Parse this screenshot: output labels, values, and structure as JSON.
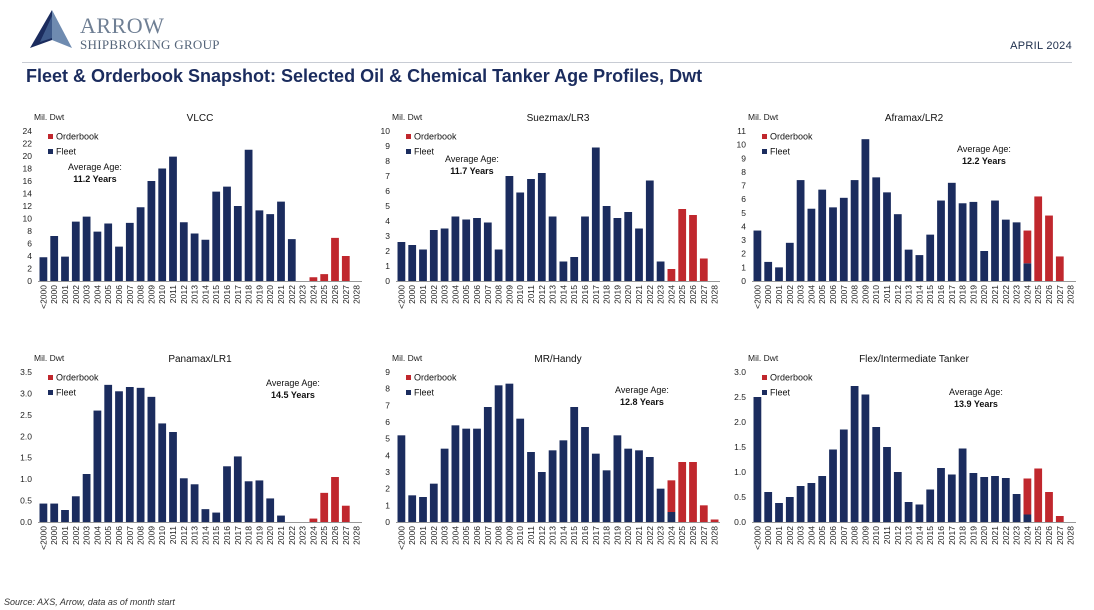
{
  "header": {
    "brand_line1": "ARROW",
    "brand_line2": "SHIPBROKING GROUP",
    "date": "APRIL 2024",
    "title": "Fleet & Orderbook Snapshot: Selected Oil & Chemical Tanker Age Profiles, Dwt"
  },
  "footer": {
    "source": "Source: AXS, Arrow, data as of month start"
  },
  "colors": {
    "fleet": "#1b2c5e",
    "orderbook": "#c0272d",
    "text": "#1b2c4a"
  },
  "chart_data": [
    {
      "type": "bar",
      "stacked": true,
      "title": "VLCC",
      "ylabel": "Mil. Dwt",
      "ylim": [
        0,
        24
      ],
      "yticks": [
        0,
        2,
        4,
        6,
        8,
        10,
        12,
        14,
        16,
        18,
        20,
        22,
        24
      ],
      "categories": [
        "<2000",
        "2000",
        "2001",
        "2002",
        "2003",
        "2004",
        "2005",
        "2006",
        "2007",
        "2008",
        "2009",
        "2010",
        "2011",
        "2012",
        "2013",
        "2014",
        "2015",
        "2016",
        "2017",
        "2018",
        "2019",
        "2020",
        "2021",
        "2022",
        "2023",
        "2024",
        "2025",
        "2026",
        "2027",
        "2028"
      ],
      "series": [
        {
          "name": "Orderbook",
          "color": "#c0272d",
          "values": [
            0,
            0,
            0,
            0,
            0,
            0,
            0,
            0,
            0,
            0,
            0,
            0,
            0,
            0,
            0,
            0,
            0,
            0,
            0,
            0,
            0,
            0,
            0,
            0,
            0,
            0.6,
            1.1,
            6.9,
            4.0,
            0
          ]
        },
        {
          "name": "Fleet",
          "color": "#1b2c5e",
          "values": [
            3.8,
            7.2,
            3.9,
            9.5,
            10.3,
            7.9,
            9.2,
            5.5,
            9.3,
            11.8,
            16.0,
            18.0,
            19.9,
            9.4,
            7.6,
            6.6,
            14.3,
            15.1,
            12.0,
            21.0,
            11.3,
            10.7,
            12.7,
            6.7,
            0,
            0,
            0,
            0,
            0,
            0
          ]
        }
      ],
      "legend": "top-left",
      "annotation": {
        "line1": "Average Age:",
        "line2": "11.2 Years"
      }
    },
    {
      "type": "bar",
      "stacked": true,
      "title": "Suezmax/LR3",
      "ylabel": "Mil. Dwt",
      "ylim": [
        0,
        10
      ],
      "yticks": [
        0,
        1,
        2,
        3,
        4,
        5,
        6,
        7,
        8,
        9,
        10
      ],
      "categories": [
        "<2000",
        "2000",
        "2001",
        "2002",
        "2003",
        "2004",
        "2005",
        "2006",
        "2007",
        "2008",
        "2009",
        "2010",
        "2011",
        "2012",
        "2013",
        "2014",
        "2015",
        "2016",
        "2017",
        "2018",
        "2019",
        "2020",
        "2021",
        "2022",
        "2023",
        "2024",
        "2025",
        "2026",
        "2027",
        "2028"
      ],
      "series": [
        {
          "name": "Orderbook",
          "color": "#c0272d",
          "values": [
            0,
            0,
            0,
            0,
            0,
            0,
            0,
            0,
            0,
            0,
            0,
            0,
            0,
            0,
            0,
            0,
            0,
            0,
            0,
            0,
            0,
            0,
            0,
            0,
            0,
            0.8,
            4.8,
            4.4,
            1.5,
            0
          ]
        },
        {
          "name": "Fleet",
          "color": "#1b2c5e",
          "values": [
            2.6,
            2.4,
            2.1,
            3.4,
            3.5,
            4.3,
            4.1,
            4.2,
            3.9,
            2.1,
            7.0,
            5.9,
            6.8,
            7.2,
            4.3,
            1.3,
            1.6,
            4.3,
            8.9,
            5.0,
            4.2,
            4.6,
            3.5,
            6.7,
            1.3,
            0,
            0,
            0,
            0,
            0
          ]
        }
      ],
      "legend": "top-left",
      "annotation": {
        "line1": "Average Age:",
        "line2": "11.7 Years"
      }
    },
    {
      "type": "bar",
      "stacked": true,
      "title": "Aframax/LR2",
      "ylabel": "Mil. Dwt",
      "ylim": [
        0,
        11
      ],
      "yticks": [
        0,
        1,
        2,
        3,
        4,
        5,
        6,
        7,
        8,
        9,
        10,
        11
      ],
      "categories": [
        "<2000",
        "2000",
        "2001",
        "2002",
        "2003",
        "2004",
        "2005",
        "2006",
        "2007",
        "2008",
        "2009",
        "2010",
        "2011",
        "2012",
        "2013",
        "2014",
        "2015",
        "2016",
        "2017",
        "2018",
        "2019",
        "2020",
        "2021",
        "2022",
        "2023",
        "2024",
        "2025",
        "2026",
        "2027",
        "2028"
      ],
      "series": [
        {
          "name": "Orderbook",
          "color": "#c0272d",
          "values": [
            0,
            0,
            0,
            0,
            0,
            0,
            0,
            0,
            0,
            0,
            0,
            0,
            0,
            0,
            0,
            0,
            0,
            0,
            0,
            0,
            0,
            0,
            0,
            0,
            0,
            2.4,
            6.2,
            4.8,
            1.8,
            0
          ]
        },
        {
          "name": "Fleet",
          "color": "#1b2c5e",
          "values": [
            3.7,
            1.4,
            1.0,
            2.8,
            7.4,
            5.3,
            6.7,
            5.4,
            6.1,
            7.4,
            10.4,
            7.6,
            6.5,
            4.9,
            2.3,
            1.9,
            3.4,
            5.9,
            7.2,
            5.7,
            5.8,
            2.2,
            5.9,
            4.5,
            4.3,
            1.3,
            0,
            0,
            0,
            0
          ]
        }
      ],
      "legend": "top-left",
      "annotation": {
        "line1": "Average Age:",
        "line2": "12.2 Years"
      }
    },
    {
      "type": "bar",
      "stacked": true,
      "title": "Panamax/LR1",
      "ylabel": "Mil. Dwt",
      "ylim": [
        0,
        3.5
      ],
      "yticks": [
        "0.0",
        "0.5",
        "1.0",
        "1.5",
        "2.0",
        "2.5",
        "3.0",
        "3.5"
      ],
      "categories": [
        "<2000",
        "2000",
        "2001",
        "2002",
        "2003",
        "2004",
        "2005",
        "2006",
        "2007",
        "2008",
        "2009",
        "2010",
        "2011",
        "2012",
        "2013",
        "2014",
        "2015",
        "2016",
        "2017",
        "2018",
        "2019",
        "2020",
        "2021",
        "2022",
        "2023",
        "2024",
        "2025",
        "2026",
        "2027",
        "2028"
      ],
      "series": [
        {
          "name": "Orderbook",
          "color": "#c0272d",
          "values": [
            0,
            0,
            0,
            0,
            0,
            0,
            0,
            0,
            0,
            0,
            0,
            0,
            0,
            0,
            0,
            0,
            0,
            0,
            0,
            0,
            0,
            0,
            0,
            0,
            0,
            0.08,
            0.68,
            1.05,
            0.38,
            0
          ]
        },
        {
          "name": "Fleet",
          "color": "#1b2c5e",
          "values": [
            0.43,
            0.43,
            0.28,
            0.6,
            1.12,
            2.6,
            3.2,
            3.05,
            3.15,
            3.13,
            2.92,
            2.3,
            2.1,
            1.02,
            0.88,
            0.3,
            0.22,
            1.3,
            1.53,
            0.95,
            0.97,
            0.55,
            0.15,
            0,
            0,
            0,
            0,
            0,
            0,
            0
          ]
        }
      ],
      "legend": "top-left",
      "annotation": {
        "line1": "Average Age:",
        "line2": "14.5 Years"
      }
    },
    {
      "type": "bar",
      "stacked": true,
      "title": "MR/Handy",
      "ylabel": "Mil. Dwt",
      "ylim": [
        0,
        9
      ],
      "yticks": [
        0,
        1,
        2,
        3,
        4,
        5,
        6,
        7,
        8,
        9
      ],
      "categories": [
        "<2000",
        "2000",
        "2001",
        "2002",
        "2003",
        "2004",
        "2005",
        "2006",
        "2007",
        "2008",
        "2009",
        "2010",
        "2011",
        "2012",
        "2013",
        "2014",
        "2015",
        "2016",
        "2017",
        "2018",
        "2019",
        "2020",
        "2021",
        "2022",
        "2023",
        "2024",
        "2025",
        "2026",
        "2027",
        "2028"
      ],
      "series": [
        {
          "name": "Orderbook",
          "color": "#c0272d",
          "values": [
            0,
            0,
            0,
            0,
            0,
            0,
            0,
            0,
            0,
            0,
            0,
            0,
            0,
            0,
            0,
            0,
            0,
            0,
            0,
            0,
            0,
            0,
            0,
            0,
            0,
            1.9,
            3.6,
            3.6,
            1.0,
            0.15
          ]
        },
        {
          "name": "Fleet",
          "color": "#1b2c5e",
          "values": [
            5.2,
            1.6,
            1.5,
            2.3,
            4.4,
            5.8,
            5.6,
            5.6,
            6.9,
            8.2,
            8.3,
            6.2,
            4.2,
            3.0,
            4.3,
            4.9,
            6.9,
            5.7,
            4.1,
            3.1,
            5.2,
            4.4,
            4.3,
            3.9,
            2.0,
            0.6,
            0,
            0,
            0,
            0
          ]
        }
      ],
      "legend": "top-left",
      "annotation": {
        "line1": "Average Age:",
        "line2": "12.8 Years"
      }
    },
    {
      "type": "bar",
      "stacked": true,
      "title": "Flex/Intermediate Tanker",
      "ylabel": "Mil. Dwt",
      "ylim": [
        0,
        3.0
      ],
      "yticks": [
        "0.0",
        "0.5",
        "1.0",
        "1.5",
        "2.0",
        "2.5",
        "3.0"
      ],
      "categories": [
        "<2000",
        "2000",
        "2001",
        "2002",
        "2003",
        "2004",
        "2005",
        "2006",
        "2007",
        "2008",
        "2009",
        "2010",
        "2011",
        "2012",
        "2013",
        "2014",
        "2015",
        "2016",
        "2017",
        "2018",
        "2019",
        "2020",
        "2021",
        "2022",
        "2023",
        "2024",
        "2025",
        "2026",
        "2027",
        "2028"
      ],
      "series": [
        {
          "name": "Orderbook",
          "color": "#c0272d",
          "values": [
            0,
            0,
            0,
            0,
            0,
            0,
            0,
            0,
            0,
            0,
            0,
            0,
            0,
            0,
            0,
            0,
            0,
            0,
            0,
            0,
            0,
            0,
            0,
            0,
            0,
            0.72,
            1.07,
            0.6,
            0.12,
            0
          ]
        },
        {
          "name": "Fleet",
          "color": "#1b2c5e",
          "values": [
            2.5,
            0.6,
            0.38,
            0.5,
            0.72,
            0.78,
            0.92,
            1.45,
            1.85,
            2.72,
            2.55,
            1.9,
            1.5,
            1.0,
            0.4,
            0.35,
            0.65,
            1.08,
            0.95,
            1.47,
            0.98,
            0.9,
            0.92,
            0.88,
            0.56,
            0.15,
            0,
            0,
            0,
            0
          ]
        }
      ],
      "legend": "top-left",
      "annotation": {
        "line1": "Average Age:",
        "line2": "13.9 Years"
      }
    }
  ]
}
